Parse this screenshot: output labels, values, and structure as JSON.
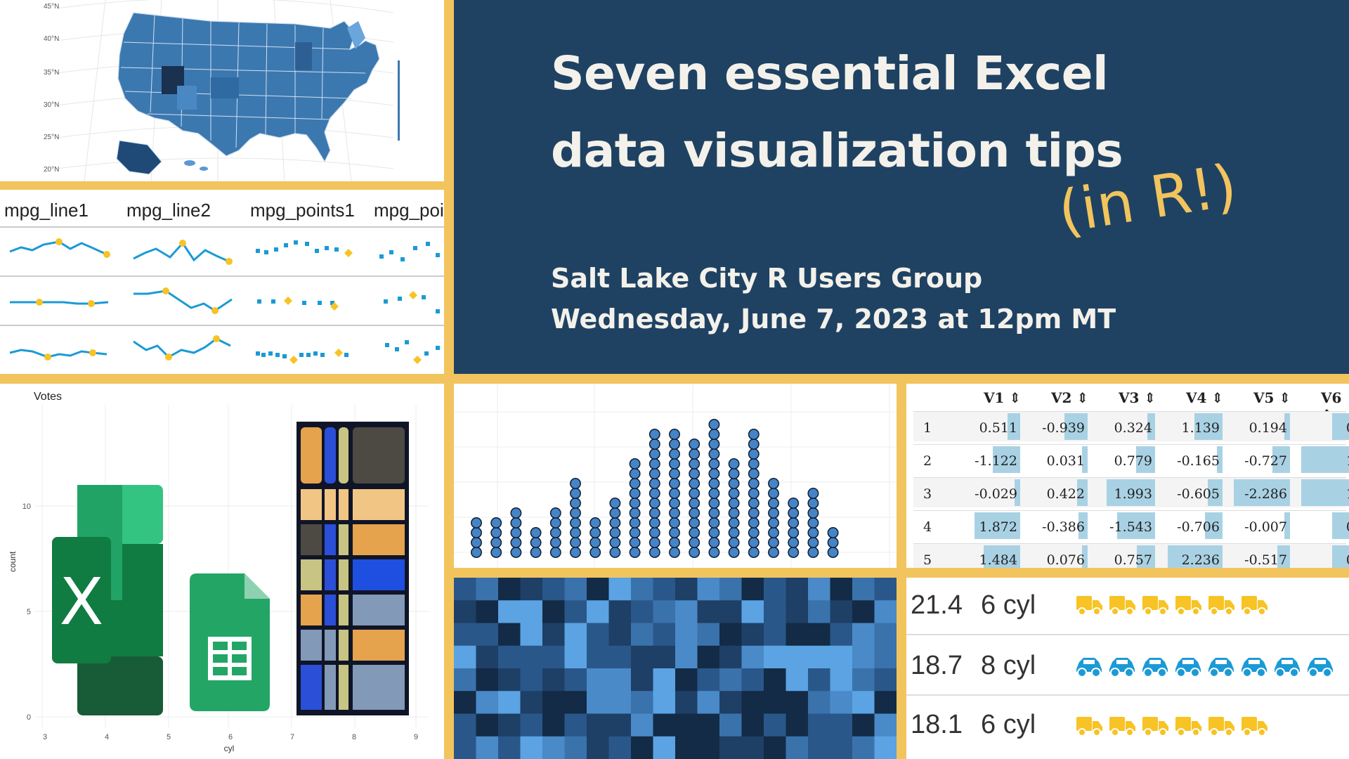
{
  "title": {
    "line1": "Seven essential Excel",
    "line2": "data visualization tips",
    "handwritten": "(in R!)"
  },
  "subtitle": {
    "line1": "Salt Lake City R Users Group",
    "line2": "Wednesday, June 7, 2023 at 12pm MT"
  },
  "colors": {
    "navy": "#1f4263",
    "gold": "#f2c45d",
    "cream": "#f3f1ea",
    "sparkline_blue": "#1b9ad6",
    "highlight": "#f7c325"
  },
  "map": {
    "lat_labels": [
      "45°N",
      "40°N",
      "35°N",
      "30°N",
      "25°N",
      "20°N"
    ]
  },
  "sparklines": {
    "columns": [
      "mpg_line1",
      "mpg_line2",
      "mpg_points1",
      "mpg_poi"
    ]
  },
  "bar_chart": {
    "legend_title": "Votes",
    "ylabel": "count",
    "xlabel": "cyl",
    "y_ticks": [
      "10",
      "5",
      "0"
    ],
    "x_ticks": [
      "3",
      "4",
      "5",
      "6",
      "7",
      "8",
      "9"
    ]
  },
  "chart_data": [
    {
      "type": "scatter",
      "subtype": "dot-histogram",
      "counts": [
        4,
        4,
        5,
        3,
        5,
        8,
        4,
        6,
        10,
        13,
        13,
        12,
        14,
        10,
        13,
        8,
        6,
        7,
        3
      ]
    },
    {
      "type": "table",
      "columns": [
        "V1",
        "V2",
        "V3",
        "V4",
        "V5",
        "V6"
      ],
      "row_index": [
        "1",
        "2",
        "3",
        "4",
        "5"
      ],
      "rows": [
        [
          "0.511",
          "-0.939",
          "0.324",
          "1.139",
          "0.194",
          "0"
        ],
        [
          "-1.122",
          "0.031",
          "0.779",
          "-0.165",
          "-0.727",
          "1"
        ],
        [
          "-0.029",
          "0.422",
          "1.993",
          "-0.605",
          "-2.286",
          "1"
        ],
        [
          "1.872",
          "-0.386",
          "-1.543",
          "-0.706",
          "-0.007",
          "0"
        ],
        [
          "1.484",
          "0.076",
          "0.757",
          "2.236",
          "-0.517",
          "0"
        ]
      ]
    }
  ],
  "icon_table": {
    "rows": [
      {
        "mpg": "21.4",
        "cyl": "6 cyl",
        "icon": "truck-icon",
        "count": 6,
        "color": "#f7c325"
      },
      {
        "mpg": "18.7",
        "cyl": "8 cyl",
        "icon": "car-icon",
        "count": 8,
        "color": "#1b9ad6"
      },
      {
        "mpg": "18.1",
        "cyl": "6 cyl",
        "icon": "truck-icon",
        "count": 6,
        "color": "#f7c325"
      }
    ]
  }
}
